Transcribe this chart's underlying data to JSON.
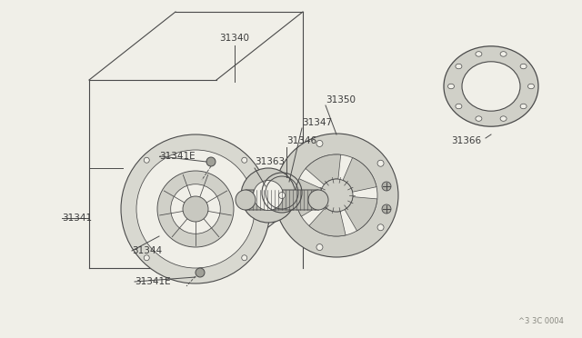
{
  "bg_color": "#f0efe8",
  "line_color": "#4a4a4a",
  "text_color": "#3a3a3a",
  "watermark": "^3 3C 0004",
  "fig_width": 6.4,
  "fig_height": 3.72,
  "dpi": 100
}
